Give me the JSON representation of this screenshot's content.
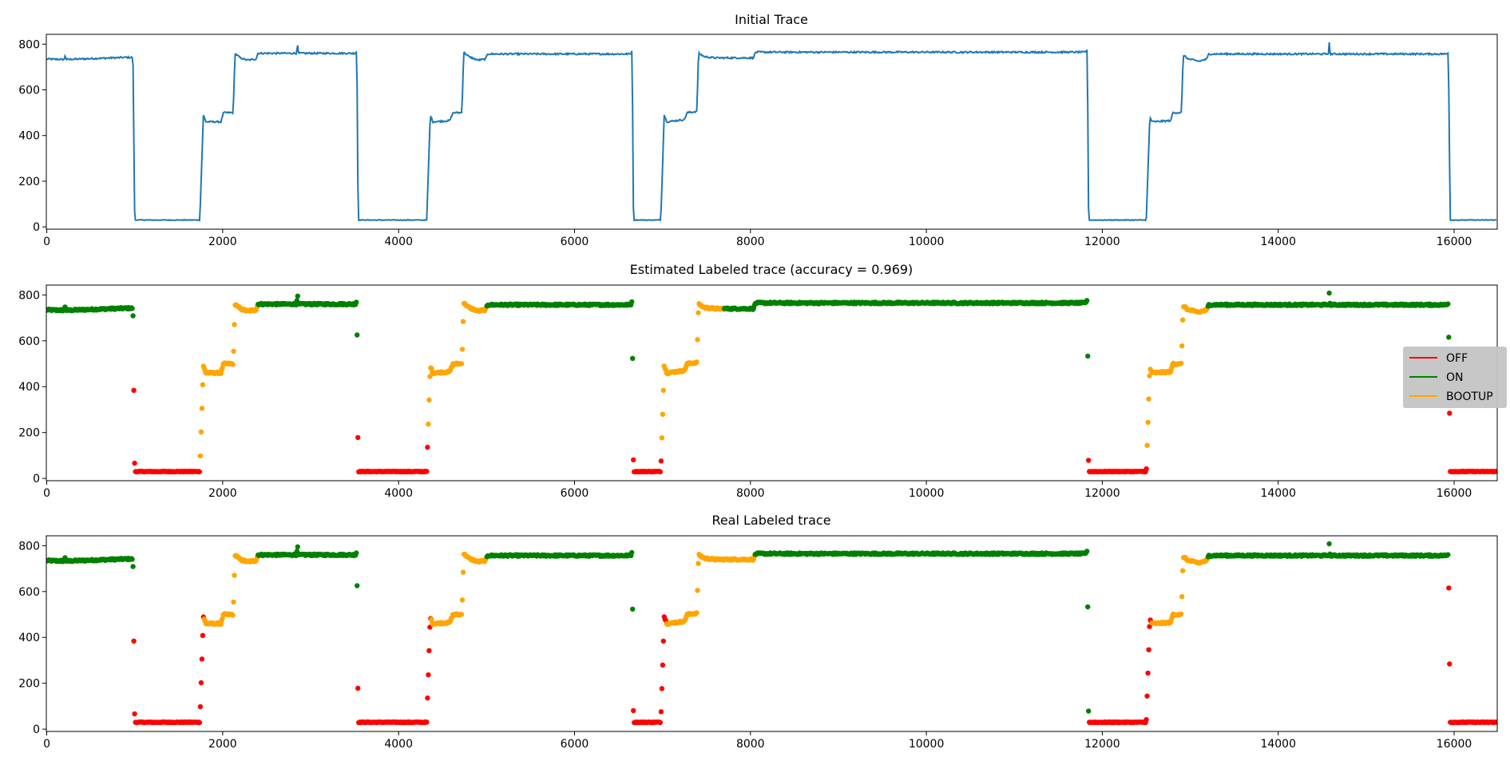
{
  "colors": {
    "line": "#1f77b4",
    "OFF": "#ff0000",
    "ON": "#008000",
    "BOOTUP": "#ffa500",
    "legend_bg": "#c4c4c4"
  },
  "chart_data": [
    {
      "type": "line",
      "title": "Initial Trace",
      "xlim": [
        -5,
        16490
      ],
      "ylim": [
        -10,
        843
      ],
      "xticks": [
        0,
        2000,
        4000,
        6000,
        8000,
        10000,
        12000,
        14000,
        16000
      ],
      "yticks": [
        0,
        200,
        400,
        600,
        800
      ],
      "grid": false,
      "series": [
        {
          "trace_ref": "trace"
        }
      ]
    },
    {
      "type": "scatter",
      "title": "Estimated Labeled trace (accuracy = 0.969)",
      "xlim": [
        -5,
        16490
      ],
      "ylim": [
        -10,
        843
      ],
      "xticks": [
        0,
        2000,
        4000,
        6000,
        8000,
        10000,
        12000,
        14000,
        16000
      ],
      "yticks": [
        0,
        200,
        400,
        600,
        800
      ],
      "grid": false,
      "legend": {
        "placement": "right",
        "entries": [
          "OFF",
          "ON",
          "BOOTUP"
        ]
      },
      "labels": [
        {
          "from": 0,
          "to": 990,
          "state": "ON"
        },
        {
          "from": 990,
          "to": 1745,
          "state": "OFF"
        },
        {
          "from": 1745,
          "to": 2400,
          "state": "BOOTUP"
        },
        {
          "from": 2400,
          "to": 3532,
          "state": "ON"
        },
        {
          "from": 3532,
          "to": 4330,
          "state": "OFF"
        },
        {
          "from": 4330,
          "to": 5000,
          "state": "BOOTUP"
        },
        {
          "from": 5000,
          "to": 6662,
          "state": "ON"
        },
        {
          "from": 6662,
          "to": 6990,
          "state": "OFF"
        },
        {
          "from": 6990,
          "to": 7700,
          "state": "BOOTUP"
        },
        {
          "from": 7700,
          "to": 11840,
          "state": "ON"
        },
        {
          "from": 11840,
          "to": 12510,
          "state": "OFF"
        },
        {
          "from": 12510,
          "to": 13200,
          "state": "BOOTUP"
        },
        {
          "from": 13200,
          "to": 15945,
          "state": "ON"
        },
        {
          "from": 15945,
          "to": 16490,
          "state": "OFF"
        }
      ]
    },
    {
      "type": "scatter",
      "title": "Real Labeled trace",
      "xlim": [
        -5,
        16490
      ],
      "ylim": [
        -10,
        843
      ],
      "xticks": [
        0,
        2000,
        4000,
        6000,
        8000,
        10000,
        12000,
        14000,
        16000
      ],
      "yticks": [
        0,
        200,
        400,
        600,
        800
      ],
      "grid": false,
      "labels": [
        {
          "from": 0,
          "to": 986,
          "state": "ON"
        },
        {
          "from": 986,
          "to": 1790,
          "state": "OFF"
        },
        {
          "from": 1790,
          "to": 2400,
          "state": "BOOTUP"
        },
        {
          "from": 2400,
          "to": 3530,
          "state": "ON"
        },
        {
          "from": 3530,
          "to": 4370,
          "state": "OFF"
        },
        {
          "from": 4370,
          "to": 5000,
          "state": "BOOTUP"
        },
        {
          "from": 5000,
          "to": 6662,
          "state": "ON"
        },
        {
          "from": 6662,
          "to": 7040,
          "state": "OFF"
        },
        {
          "from": 7040,
          "to": 8050,
          "state": "BOOTUP"
        },
        {
          "from": 8050,
          "to": 11845,
          "state": "ON"
        },
        {
          "from": 11845,
          "to": 12560,
          "state": "OFF"
        },
        {
          "from": 12560,
          "to": 13200,
          "state": "BOOTUP"
        },
        {
          "from": 13200,
          "to": 15935,
          "state": "ON"
        },
        {
          "from": 15935,
          "to": 16490,
          "state": "OFF"
        }
      ]
    }
  ],
  "trace": [
    [
      0,
      735
    ],
    [
      200,
      733
    ],
    [
      210,
      755
    ],
    [
      220,
      733
    ],
    [
      900,
      742
    ],
    [
      980,
      742
    ],
    [
      1000,
      30
    ],
    [
      1740,
      30
    ],
    [
      1780,
      490
    ],
    [
      1810,
      460
    ],
    [
      1980,
      460
    ],
    [
      2010,
      500
    ],
    [
      2120,
      500
    ],
    [
      2140,
      760
    ],
    [
      2200,
      740
    ],
    [
      2280,
      730
    ],
    [
      2380,
      735
    ],
    [
      2400,
      760
    ],
    [
      2840,
      760
    ],
    [
      2850,
      805
    ],
    [
      2860,
      760
    ],
    [
      3510,
      760
    ],
    [
      3525,
      775
    ],
    [
      3540,
      30
    ],
    [
      4320,
      30
    ],
    [
      4360,
      490
    ],
    [
      4390,
      460
    ],
    [
      4580,
      465
    ],
    [
      4620,
      500
    ],
    [
      4720,
      500
    ],
    [
      4740,
      765
    ],
    [
      4800,
      745
    ],
    [
      4900,
      730
    ],
    [
      4990,
      735
    ],
    [
      5010,
      757
    ],
    [
      6640,
      757
    ],
    [
      6655,
      775
    ],
    [
      6670,
      30
    ],
    [
      6980,
      30
    ],
    [
      7020,
      490
    ],
    [
      7050,
      460
    ],
    [
      7250,
      470
    ],
    [
      7280,
      500
    ],
    [
      7390,
      505
    ],
    [
      7410,
      760
    ],
    [
      7480,
      745
    ],
    [
      7600,
      740
    ],
    [
      8030,
      740
    ],
    [
      8060,
      765
    ],
    [
      11810,
      765
    ],
    [
      11830,
      780
    ],
    [
      11845,
      30
    ],
    [
      12500,
      30
    ],
    [
      12540,
      480
    ],
    [
      12570,
      460
    ],
    [
      12780,
      465
    ],
    [
      12800,
      500
    ],
    [
      12900,
      500
    ],
    [
      12920,
      752
    ],
    [
      12980,
      735
    ],
    [
      13100,
      725
    ],
    [
      13190,
      735
    ],
    [
      13210,
      757
    ],
    [
      14570,
      757
    ],
    [
      14580,
      805
    ],
    [
      14590,
      757
    ],
    [
      15920,
      757
    ],
    [
      15935,
      765
    ],
    [
      15955,
      30
    ],
    [
      16490,
      30
    ]
  ]
}
